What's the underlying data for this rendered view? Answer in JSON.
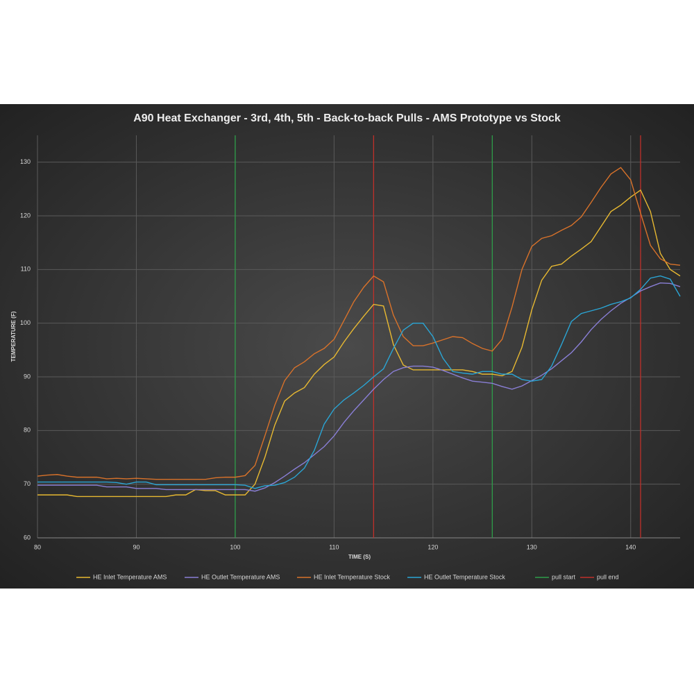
{
  "chart_data": {
    "type": "line",
    "title": "A90 Heat Exchanger - 3rd, 4th, 5th - Back-to-back Pulls - AMS Prototype vs Stock",
    "x_label": "TIME (S)",
    "y_label": "TEMPERATURE (F)",
    "x": [
      80,
      81,
      82,
      83,
      84,
      85,
      86,
      87,
      88,
      89,
      90,
      91,
      92,
      93,
      94,
      95,
      96,
      97,
      98,
      99,
      100,
      101,
      102,
      103,
      104,
      105,
      106,
      107,
      108,
      109,
      110,
      111,
      112,
      113,
      114,
      115,
      116,
      117,
      118,
      119,
      120,
      121,
      122,
      123,
      124,
      125,
      126,
      127,
      128,
      129,
      130,
      131,
      132,
      133,
      134,
      135,
      136,
      137,
      138,
      139,
      140,
      141,
      142,
      143,
      144,
      145
    ],
    "series": [
      {
        "name": "HE Inlet Temperature AMS",
        "color": "#e8b931",
        "values": [
          68,
          68,
          68,
          68,
          67.7,
          67.7,
          67.7,
          67.7,
          67.7,
          67.7,
          67.7,
          67.7,
          67.7,
          67.7,
          68,
          68,
          69,
          68.8,
          68.8,
          68,
          68,
          68,
          70,
          75,
          81,
          85.5,
          87,
          88,
          90.5,
          92.3,
          93.7,
          96.5,
          99,
          101.3,
          103.5,
          103.2,
          96,
          92.2,
          91.3,
          91.3,
          91.3,
          91.3,
          91.3,
          91.3,
          91,
          90.5,
          90.5,
          90.2,
          91,
          95.5,
          102.5,
          108,
          110.6,
          111,
          112.5,
          113.8,
          115.2,
          118,
          120.8,
          122,
          123.5,
          124.8,
          120.8,
          113,
          110,
          108.8
        ]
      },
      {
        "name": "HE Outlet Temperature AMS",
        "color": "#8a7fd6",
        "values": [
          69.8,
          69.8,
          69.8,
          69.8,
          69.8,
          69.8,
          69.8,
          69.5,
          69.5,
          69.5,
          69.2,
          69.2,
          69.2,
          69,
          69,
          69,
          69,
          69,
          69,
          69,
          69,
          69,
          68.7,
          69.3,
          70.3,
          71.5,
          72.8,
          74,
          75.5,
          77,
          79,
          81.5,
          83.7,
          85.7,
          87.7,
          89.5,
          91,
          91.7,
          92,
          92,
          91.8,
          91.2,
          90.5,
          89.8,
          89.2,
          89,
          88.8,
          88.2,
          87.7,
          88.3,
          89.3,
          90.3,
          91.5,
          93,
          94.5,
          96.5,
          98.8,
          100.7,
          102.3,
          103.7,
          104.8,
          106,
          106.8,
          107.5,
          107.4,
          106.8
        ]
      },
      {
        "name": "HE Inlet Temperature Stock",
        "color": "#d9722a",
        "values": [
          71.5,
          71.7,
          71.8,
          71.5,
          71.3,
          71.3,
          71.3,
          71,
          71.1,
          71,
          71.1,
          71,
          70.9,
          70.9,
          70.9,
          70.9,
          70.9,
          70.9,
          71.2,
          71.3,
          71.3,
          71.6,
          73.5,
          79,
          84.7,
          89.3,
          91.7,
          92.8,
          94.3,
          95.3,
          97,
          100.5,
          104,
          106.7,
          108.8,
          107.7,
          101.5,
          97.5,
          95.8,
          95.8,
          96.3,
          96.9,
          97.5,
          97.3,
          96.2,
          95.3,
          94.8,
          97,
          103,
          110,
          114.3,
          115.8,
          116.3,
          117.3,
          118.2,
          119.8,
          122.5,
          125.3,
          127.8,
          129,
          126.7,
          120.5,
          114.5,
          112,
          111,
          110.8
        ]
      },
      {
        "name": "HE Outlet Temperature Stock",
        "color": "#2aa6d6",
        "values": [
          70.4,
          70.4,
          70.4,
          70.4,
          70.4,
          70.4,
          70.4,
          70.4,
          70.3,
          70,
          70.4,
          70.4,
          69.9,
          69.9,
          69.9,
          69.9,
          69.9,
          69.9,
          69.9,
          69.9,
          69.9,
          69.8,
          69.2,
          69.7,
          69.8,
          70.3,
          71.3,
          73,
          76.3,
          81.2,
          84,
          85.7,
          87,
          88.4,
          90,
          91.5,
          95.3,
          98.7,
          100,
          100,
          97.5,
          93.5,
          91,
          90.7,
          90.5,
          91,
          91,
          90.5,
          90.5,
          89.5,
          89.2,
          89.5,
          92,
          96,
          100.3,
          101.8,
          102.3,
          102.8,
          103.5,
          104,
          104.7,
          106.3,
          108.4,
          108.8,
          108.2,
          105
        ]
      }
    ],
    "vlines": [
      {
        "name": "pull start",
        "color": "#2e9e4a",
        "x": [
          100,
          126
        ]
      },
      {
        "name": "pull end",
        "color": "#c0302a",
        "x": [
          114,
          141
        ]
      }
    ],
    "xlim": [
      80,
      145
    ],
    "xticks": [
      80,
      90,
      100,
      110,
      120,
      130,
      140
    ],
    "ylim": [
      60,
      135
    ],
    "yticks": [
      60,
      70,
      80,
      90,
      100,
      110,
      120,
      130
    ],
    "grid": true
  }
}
